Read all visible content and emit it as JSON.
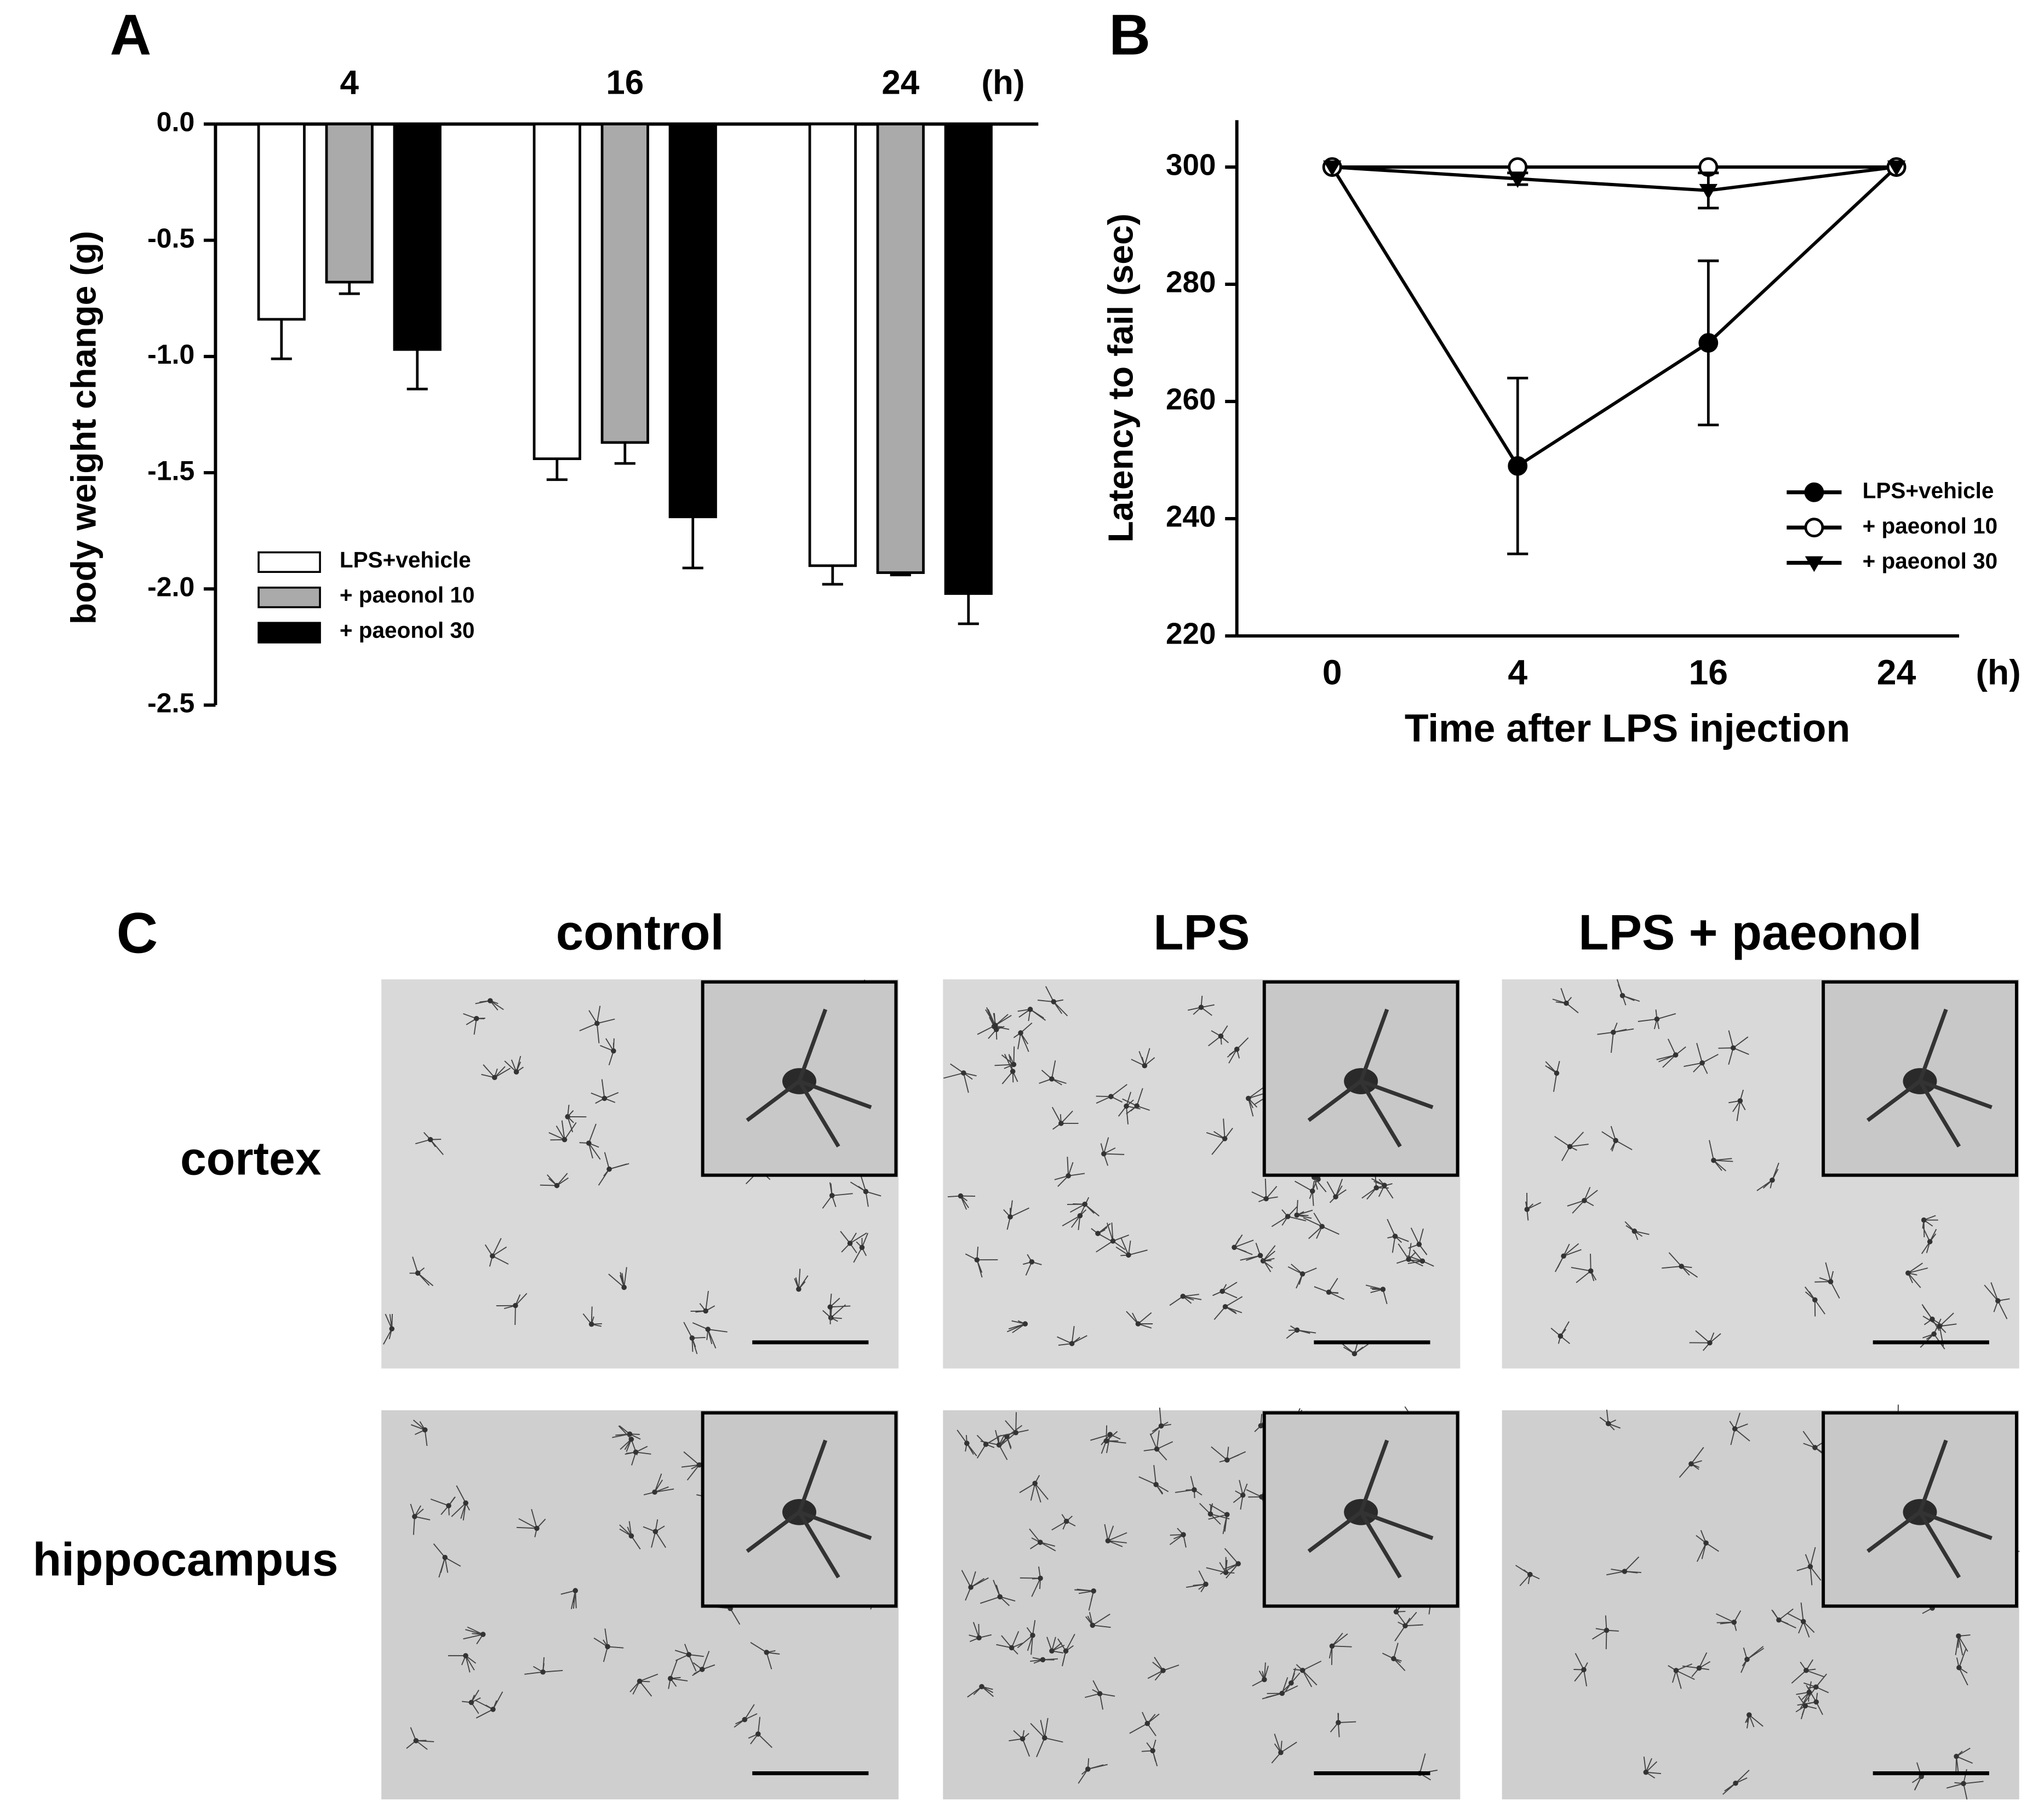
{
  "chart_data": [
    {
      "type": "bar",
      "panel": "A",
      "ylabel": "body weight change (g)",
      "categories": [
        "4",
        "16",
        "24"
      ],
      "x_unit": "(h)",
      "ylim": [
        -2.5,
        0
      ],
      "yticks": [
        {
          "value": 0,
          "label": "0.0"
        },
        -0.5,
        {
          "value": -1,
          "label": "-1.0"
        },
        -1.5,
        {
          "value": -2,
          "label": "-2.0"
        },
        -2.5
      ],
      "legend": "lower left",
      "series": [
        {
          "name": "LPS+vehicle",
          "color": "#ffffff",
          "values": [
            -0.84,
            -1.44,
            -1.9
          ],
          "errors": [
            0.17,
            0.09,
            0.08
          ]
        },
        {
          "name": "+ paeonol 10",
          "color": "#aaaaaa",
          "values": [
            -0.68,
            -1.37,
            -1.93
          ],
          "errors": [
            0.05,
            0.09,
            0.01
          ]
        },
        {
          "name": "+ paeonol 30",
          "color": "#000000",
          "values": [
            -0.97,
            -1.69,
            -2.02
          ],
          "errors": [
            0.17,
            0.22,
            0.13
          ]
        }
      ]
    },
    {
      "type": "line",
      "panel": "B",
      "xlabel": "Time after LPS injection",
      "ylabel": "Latency to fail (sec)",
      "categories": [
        "0",
        "4",
        "16",
        "24"
      ],
      "x_unit": "(h)",
      "ylim": [
        220,
        308
      ],
      "yticks": [
        220,
        240,
        260,
        280,
        300
      ],
      "legend": "lower right",
      "series": [
        {
          "name": "LPS+vehicle",
          "color": "#000000",
          "marker": "circle-filled",
          "values": [
            300,
            249,
            270,
            300
          ],
          "errors": [
            0,
            15,
            14,
            0
          ]
        },
        {
          "name": "+ paeonol 10",
          "color": "#000000",
          "marker": "circle-open",
          "values": [
            300,
            300,
            300,
            300
          ],
          "errors": [
            0,
            0,
            0,
            0
          ]
        },
        {
          "name": "+ paeonol 30",
          "color": "#000000",
          "marker": "triangle-down",
          "values": [
            300,
            298,
            296,
            300
          ],
          "errors": [
            0,
            1,
            3,
            0
          ]
        }
      ]
    }
  ],
  "panel_c": {
    "label": "C",
    "columns": [
      "control",
      "LPS",
      "LPS + paeonol"
    ],
    "rows": [
      "cortex",
      "hippocampus"
    ]
  }
}
